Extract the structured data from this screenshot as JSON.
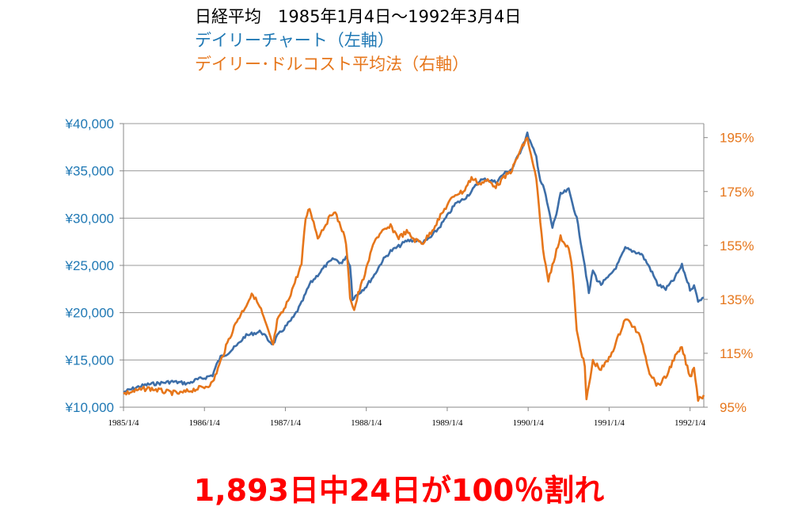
{
  "titles": {
    "line1": "日経平均　1985年1月4日〜1992年3月4日",
    "line2": "デイリーチャート（左軸）",
    "line3": "デイリー･ドルコスト平均法（右軸）"
  },
  "footer": {
    "text": "1,893日中24日が100％割れ",
    "color": "#ff0000"
  },
  "chart_data": {
    "type": "line",
    "x_axis": {
      "ticks": [
        "1985/1/4",
        "1986/1/4",
        "1987/1/4",
        "1988/1/4",
        "1989/1/4",
        "1990/1/4",
        "1991/1/4",
        "1992/1/4"
      ],
      "range": [
        1985.0,
        1992.17
      ]
    },
    "y_left": {
      "ticks": [
        "¥10,000",
        "¥15,000",
        "¥20,000",
        "¥25,000",
        "¥30,000",
        "¥35,000",
        "¥40,000"
      ],
      "tick_values": [
        10000,
        15000,
        20000,
        25000,
        30000,
        35000,
        40000
      ],
      "range": [
        10000,
        40000
      ],
      "color": "#1f78b4"
    },
    "y_right": {
      "ticks": [
        "95%",
        "115%",
        "135%",
        "155%",
        "175%",
        "195%"
      ],
      "tick_values": [
        95,
        115,
        135,
        155,
        175,
        195
      ],
      "range": [
        95,
        200.2
      ],
      "color": "#e6761b"
    },
    "grid": true,
    "series": [
      {
        "axis": "left",
        "color": "#3d6ea8",
        "points": [
          [
            1985.0,
            11600
          ],
          [
            1985.1,
            11900
          ],
          [
            1985.2,
            12200
          ],
          [
            1985.3,
            12400
          ],
          [
            1985.4,
            12500
          ],
          [
            1985.5,
            12600
          ],
          [
            1985.6,
            12700
          ],
          [
            1985.7,
            12600
          ],
          [
            1985.8,
            12500
          ],
          [
            1985.9,
            12900
          ],
          [
            1986.0,
            13100
          ],
          [
            1986.1,
            13400
          ],
          [
            1986.15,
            14500
          ],
          [
            1986.2,
            15300
          ],
          [
            1986.3,
            15800
          ],
          [
            1986.4,
            16500
          ],
          [
            1986.5,
            17500
          ],
          [
            1986.6,
            17800
          ],
          [
            1986.7,
            18000
          ],
          [
            1986.8,
            17000
          ],
          [
            1986.85,
            16700
          ],
          [
            1986.9,
            17500
          ],
          [
            1987.0,
            18500
          ],
          [
            1987.1,
            19500
          ],
          [
            1987.2,
            21000
          ],
          [
            1987.3,
            23000
          ],
          [
            1987.4,
            24000
          ],
          [
            1987.5,
            25000
          ],
          [
            1987.6,
            25700
          ],
          [
            1987.7,
            25200
          ],
          [
            1987.75,
            26000
          ],
          [
            1987.8,
            25000
          ],
          [
            1987.83,
            21500
          ],
          [
            1987.9,
            22000
          ],
          [
            1988.0,
            22800
          ],
          [
            1988.1,
            24000
          ],
          [
            1988.2,
            25500
          ],
          [
            1988.3,
            26500
          ],
          [
            1988.4,
            27000
          ],
          [
            1988.5,
            27600
          ],
          [
            1988.6,
            27700
          ],
          [
            1988.7,
            27400
          ],
          [
            1988.8,
            28000
          ],
          [
            1988.9,
            29000
          ],
          [
            1989.0,
            30200
          ],
          [
            1989.1,
            31500
          ],
          [
            1989.2,
            32000
          ],
          [
            1989.3,
            32800
          ],
          [
            1989.4,
            34000
          ],
          [
            1989.5,
            34100
          ],
          [
            1989.6,
            33800
          ],
          [
            1989.7,
            34700
          ],
          [
            1989.8,
            35200
          ],
          [
            1989.9,
            37000
          ],
          [
            1989.99,
            38900
          ],
          [
            1990.05,
            37500
          ],
          [
            1990.1,
            36500
          ],
          [
            1990.15,
            34000
          ],
          [
            1990.2,
            33000
          ],
          [
            1990.25,
            31000
          ],
          [
            1990.3,
            29000
          ],
          [
            1990.35,
            30500
          ],
          [
            1990.4,
            32500
          ],
          [
            1990.5,
            33000
          ],
          [
            1990.55,
            31500
          ],
          [
            1990.6,
            30000
          ],
          [
            1990.7,
            25000
          ],
          [
            1990.75,
            22000
          ],
          [
            1990.8,
            24500
          ],
          [
            1990.85,
            23500
          ],
          [
            1990.9,
            23000
          ],
          [
            1991.0,
            23800
          ],
          [
            1991.1,
            25000
          ],
          [
            1991.2,
            26800
          ],
          [
            1991.3,
            26500
          ],
          [
            1991.4,
            26200
          ],
          [
            1991.5,
            24800
          ],
          [
            1991.6,
            23000
          ],
          [
            1991.7,
            22500
          ],
          [
            1991.8,
            23500
          ],
          [
            1991.9,
            25000
          ],
          [
            1992.0,
            22500
          ],
          [
            1992.05,
            22800
          ],
          [
            1992.1,
            21300
          ],
          [
            1992.17,
            21600
          ]
        ]
      },
      {
        "axis": "right",
        "color": "#e6761b",
        "points": [
          [
            1985.0,
            100
          ],
          [
            1985.1,
            100.7
          ],
          [
            1985.2,
            101.4
          ],
          [
            1985.3,
            102
          ],
          [
            1985.4,
            101.5
          ],
          [
            1985.5,
            100.8
          ],
          [
            1985.6,
            100.4
          ],
          [
            1985.7,
            100.1
          ],
          [
            1985.8,
            101
          ],
          [
            1985.9,
            101.8
          ],
          [
            1986.0,
            102.5
          ],
          [
            1986.1,
            104
          ],
          [
            1986.15,
            108
          ],
          [
            1986.2,
            112
          ],
          [
            1986.3,
            120
          ],
          [
            1986.4,
            127
          ],
          [
            1986.5,
            132
          ],
          [
            1986.55,
            135
          ],
          [
            1986.6,
            137
          ],
          [
            1986.7,
            131
          ],
          [
            1986.8,
            122
          ],
          [
            1986.85,
            118
          ],
          [
            1986.9,
            127
          ],
          [
            1987.0,
            132
          ],
          [
            1987.1,
            140
          ],
          [
            1987.2,
            148
          ],
          [
            1987.25,
            165
          ],
          [
            1987.3,
            169
          ],
          [
            1987.4,
            158
          ],
          [
            1987.5,
            163
          ],
          [
            1987.6,
            168
          ],
          [
            1987.7,
            161
          ],
          [
            1987.75,
            156
          ],
          [
            1987.8,
            136
          ],
          [
            1987.85,
            131
          ],
          [
            1987.9,
            137
          ],
          [
            1988.0,
            146
          ],
          [
            1988.1,
            157
          ],
          [
            1988.2,
            160
          ],
          [
            1988.3,
            162
          ],
          [
            1988.4,
            158
          ],
          [
            1988.5,
            160
          ],
          [
            1988.6,
            157
          ],
          [
            1988.7,
            156
          ],
          [
            1988.8,
            160
          ],
          [
            1988.9,
            165
          ],
          [
            1989.0,
            170
          ],
          [
            1989.1,
            174
          ],
          [
            1989.2,
            175
          ],
          [
            1989.3,
            180
          ],
          [
            1989.4,
            178
          ],
          [
            1989.5,
            179
          ],
          [
            1989.6,
            177
          ],
          [
            1989.7,
            180
          ],
          [
            1989.8,
            183
          ],
          [
            1989.9,
            190
          ],
          [
            1989.99,
            195
          ],
          [
            1990.05,
            186
          ],
          [
            1990.1,
            180
          ],
          [
            1990.15,
            163
          ],
          [
            1990.2,
            150
          ],
          [
            1990.25,
            142
          ],
          [
            1990.3,
            148
          ],
          [
            1990.4,
            158
          ],
          [
            1990.5,
            154
          ],
          [
            1990.55,
            145
          ],
          [
            1990.6,
            123
          ],
          [
            1990.7,
            110
          ],
          [
            1990.72,
            97.5
          ],
          [
            1990.8,
            112
          ],
          [
            1990.9,
            109
          ],
          [
            1991.0,
            113
          ],
          [
            1991.1,
            120
          ],
          [
            1991.2,
            128
          ],
          [
            1991.3,
            125
          ],
          [
            1991.4,
            120
          ],
          [
            1991.5,
            108
          ],
          [
            1991.6,
            103
          ],
          [
            1991.7,
            106
          ],
          [
            1991.8,
            113
          ],
          [
            1991.9,
            117
          ],
          [
            1992.0,
            106
          ],
          [
            1992.05,
            110
          ],
          [
            1992.1,
            98
          ],
          [
            1992.17,
            99.5
          ]
        ]
      }
    ]
  }
}
